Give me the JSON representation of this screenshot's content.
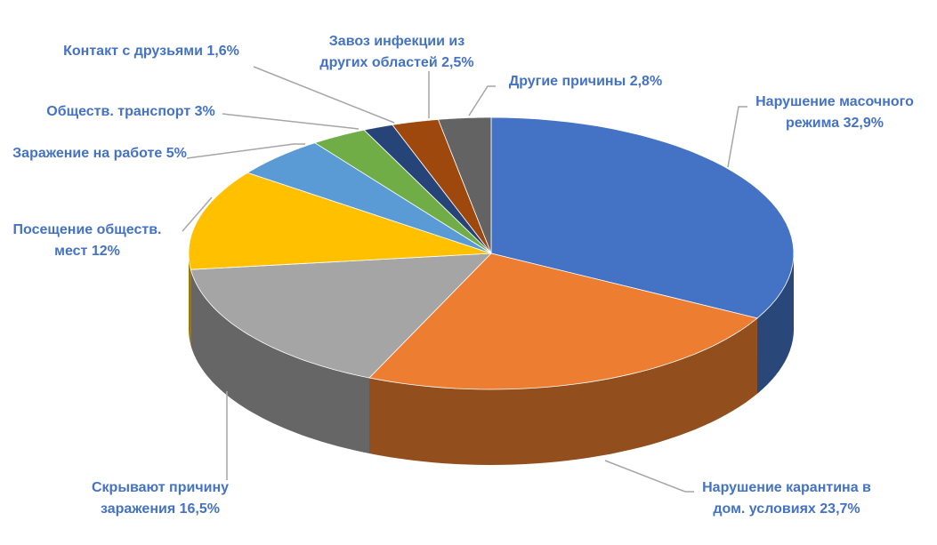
{
  "chart_data": {
    "type": "pie3d",
    "categories": [
      "Нарушение масочного режима",
      "Нарушение карантина в дом. условиях",
      "Скрывают причину заражения",
      "Посещение обществ. мест",
      "Заражение на работе",
      "Обществ. транспорт",
      "Контакт с друзьями",
      "Завоз инфекции из других областей",
      "Другие причины"
    ],
    "values": [
      32.9,
      23.7,
      16.5,
      12,
      5,
      3,
      1.6,
      2.5,
      2.8
    ],
    "value_labels": [
      "32,9%",
      "23,7%",
      "16,5%",
      "12%",
      "5%",
      "3%",
      "1,6%",
      "2,5%",
      "2,8%"
    ],
    "colors": [
      "#4472c4",
      "#ed7d31",
      "#a5a5a5",
      "#ffc000",
      "#5b9bd5",
      "#70ad47",
      "#264478",
      "#9e480e",
      "#636363"
    ]
  }
}
